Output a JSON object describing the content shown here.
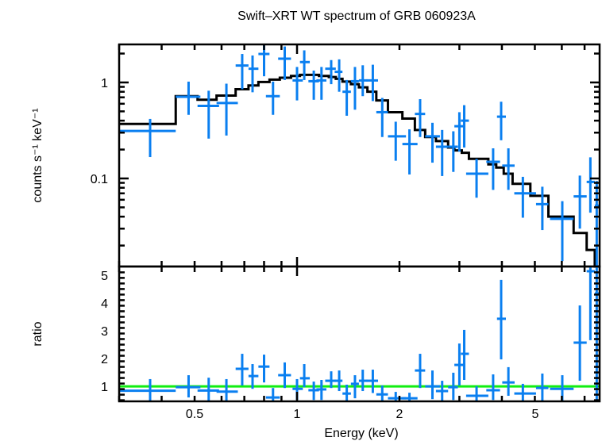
{
  "chart_data": [
    {
      "panel": "spectrum",
      "type": "scatter",
      "title": "Swift–XRT WT spectrum of GRB 060923A",
      "xlabel": "Energy (keV)",
      "ylabel": "counts s⁻¹ keV⁻¹",
      "xscale": "log",
      "yscale": "log",
      "xlim": [
        0.3,
        7.75
      ],
      "ylim": [
        0.0121,
        2.49
      ],
      "xticks": [
        {
          "value": 0.5,
          "label": "0.5"
        },
        {
          "value": 1,
          "label": "1"
        },
        {
          "value": 2,
          "label": "2"
        },
        {
          "value": 5,
          "label": "5"
        }
      ],
      "yticks": [
        {
          "value": 1,
          "label": "1"
        },
        {
          "value": 0.1,
          "label": "0.1"
        }
      ],
      "grid": false,
      "data_color": "#0a7ff0",
      "model_color": "#000000",
      "data": [
        {
          "e": 0.37,
          "elo": 0.3,
          "ehi": 0.44,
          "y": 0.312,
          "ylo": 0.167,
          "yhi": 0.417
        },
        {
          "e": 0.48,
          "elo": 0.44,
          "ehi": 0.52,
          "y": 0.71,
          "ylo": 0.46,
          "yhi": 1.02
        },
        {
          "e": 0.55,
          "elo": 0.51,
          "ehi": 0.59,
          "y": 0.57,
          "ylo": 0.26,
          "yhi": 0.82
        },
        {
          "e": 0.62,
          "elo": 0.58,
          "ehi": 0.67,
          "y": 0.61,
          "ylo": 0.28,
          "yhi": 0.97
        },
        {
          "e": 0.69,
          "elo": 0.66,
          "ehi": 0.72,
          "y": 1.5,
          "ylo": 0.85,
          "yhi": 1.98
        },
        {
          "e": 0.74,
          "elo": 0.72,
          "ehi": 0.77,
          "y": 1.39,
          "ylo": 0.79,
          "yhi": 1.91
        },
        {
          "e": 0.8,
          "elo": 0.77,
          "ehi": 0.83,
          "y": 1.98,
          "ylo": 1.16,
          "yhi": 2.49
        },
        {
          "e": 0.85,
          "elo": 0.81,
          "ehi": 0.89,
          "y": 0.72,
          "ylo": 0.46,
          "yhi": 1.02
        },
        {
          "e": 0.92,
          "elo": 0.88,
          "ehi": 0.96,
          "y": 1.77,
          "ylo": 1.06,
          "yhi": 2.37
        },
        {
          "e": 1.0,
          "elo": 0.97,
          "ehi": 1.04,
          "y": 1.05,
          "ylo": 0.65,
          "yhi": 1.45
        },
        {
          "e": 1.05,
          "elo": 1.02,
          "ehi": 1.09,
          "y": 1.63,
          "ylo": 1.06,
          "yhi": 2.16
        },
        {
          "e": 1.12,
          "elo": 1.08,
          "ehi": 1.16,
          "y": 1.03,
          "ylo": 0.66,
          "yhi": 1.33
        },
        {
          "e": 1.18,
          "elo": 1.14,
          "ehi": 1.22,
          "y": 1.05,
          "ylo": 0.66,
          "yhi": 1.45
        },
        {
          "e": 1.26,
          "elo": 1.21,
          "ehi": 1.3,
          "y": 1.39,
          "ylo": 0.96,
          "yhi": 1.71
        },
        {
          "e": 1.33,
          "elo": 1.29,
          "ehi": 1.36,
          "y": 1.29,
          "ylo": 0.8,
          "yhi": 1.74
        },
        {
          "e": 1.4,
          "elo": 1.36,
          "ehi": 1.44,
          "y": 0.8,
          "ylo": 0.45,
          "yhi": 1.06
        },
        {
          "e": 1.48,
          "elo": 1.44,
          "ehi": 1.52,
          "y": 1.03,
          "ylo": 0.52,
          "yhi": 1.45
        },
        {
          "e": 1.56,
          "elo": 1.52,
          "ehi": 1.61,
          "y": 1.05,
          "ylo": 0.72,
          "yhi": 1.51
        },
        {
          "e": 1.67,
          "elo": 1.6,
          "ehi": 1.73,
          "y": 1.05,
          "ylo": 0.64,
          "yhi": 1.53
        },
        {
          "e": 1.78,
          "elo": 1.71,
          "ehi": 1.85,
          "y": 0.49,
          "ylo": 0.27,
          "yhi": 0.69
        },
        {
          "e": 1.95,
          "elo": 1.85,
          "ehi": 2.09,
          "y": 0.275,
          "ylo": 0.153,
          "yhi": 0.39
        },
        {
          "e": 2.14,
          "elo": 2.04,
          "ehi": 2.26,
          "y": 0.228,
          "ylo": 0.11,
          "yhi": 0.325
        },
        {
          "e": 2.3,
          "elo": 2.22,
          "ehi": 2.38,
          "y": 0.47,
          "ylo": 0.27,
          "yhi": 0.67
        },
        {
          "e": 2.5,
          "elo": 2.38,
          "ehi": 2.63,
          "y": 0.275,
          "ylo": 0.146,
          "yhi": 0.38
        },
        {
          "e": 2.67,
          "elo": 2.56,
          "ehi": 2.78,
          "y": 0.214,
          "ylo": 0.106,
          "yhi": 0.32
        },
        {
          "e": 2.88,
          "elo": 2.78,
          "ehi": 2.97,
          "y": 0.214,
          "ylo": 0.117,
          "yhi": 0.31
        },
        {
          "e": 3.0,
          "elo": 2.9,
          "ehi": 3.11,
          "y": 0.35,
          "ylo": 0.19,
          "yhi": 0.49
        },
        {
          "e": 3.1,
          "elo": 3.03,
          "ehi": 3.2,
          "y": 0.4,
          "ylo": 0.21,
          "yhi": 0.58
        },
        {
          "e": 3.37,
          "elo": 3.14,
          "ehi": 3.65,
          "y": 0.112,
          "ylo": 0.063,
          "yhi": 0.16
        },
        {
          "e": 3.77,
          "elo": 3.6,
          "ehi": 3.95,
          "y": 0.149,
          "ylo": 0.076,
          "yhi": 0.206
        },
        {
          "e": 3.98,
          "elo": 3.87,
          "ehi": 4.11,
          "y": 0.44,
          "ylo": 0.25,
          "yhi": 0.63
        },
        {
          "e": 4.18,
          "elo": 4.01,
          "ehi": 4.36,
          "y": 0.136,
          "ylo": 0.076,
          "yhi": 0.206
        },
        {
          "e": 4.61,
          "elo": 4.35,
          "ehi": 5.04,
          "y": 0.07,
          "ylo": 0.039,
          "yhi": 0.104
        },
        {
          "e": 5.26,
          "elo": 5.04,
          "ehi": 5.48,
          "y": 0.054,
          "ylo": 0.029,
          "yhi": 0.082
        },
        {
          "e": 6.02,
          "elo": 5.54,
          "ehi": 6.5,
          "y": 0.038,
          "ylo": 0.0138,
          "yhi": 0.058
        },
        {
          "e": 6.78,
          "elo": 6.5,
          "ehi": 7.1,
          "y": 0.065,
          "ylo": 0.03,
          "yhi": 0.107
        },
        {
          "e": 7.28,
          "elo": 7.1,
          "ehi": 7.5,
          "y": 0.092,
          "ylo": 0.044,
          "yhi": 0.166
        },
        {
          "e": 7.6,
          "elo": 7.5,
          "ehi": 7.75,
          "y": 0.052,
          "ylo": 0.0121,
          "yhi": 0.094
        }
      ],
      "model_steps": [
        {
          "elo": 0.3,
          "ehi": 0.44,
          "y": 0.37
        },
        {
          "elo": 0.44,
          "ehi": 0.51,
          "y": 0.72
        },
        {
          "elo": 0.51,
          "ehi": 0.58,
          "y": 0.66
        },
        {
          "elo": 0.58,
          "ehi": 0.66,
          "y": 0.73
        },
        {
          "elo": 0.66,
          "ehi": 0.72,
          "y": 0.85
        },
        {
          "elo": 0.72,
          "ehi": 0.77,
          "y": 0.93
        },
        {
          "elo": 0.77,
          "ehi": 0.83,
          "y": 1.01
        },
        {
          "elo": 0.83,
          "ehi": 0.89,
          "y": 1.07
        },
        {
          "elo": 0.89,
          "ehi": 0.96,
          "y": 1.12
        },
        {
          "elo": 0.96,
          "ehi": 1.02,
          "y": 1.17
        },
        {
          "elo": 1.02,
          "ehi": 1.1,
          "y": 1.2
        },
        {
          "elo": 1.1,
          "ehi": 1.16,
          "y": 1.2
        },
        {
          "elo": 1.16,
          "ehi": 1.24,
          "y": 1.17
        },
        {
          "elo": 1.24,
          "ehi": 1.3,
          "y": 1.14
        },
        {
          "elo": 1.3,
          "ehi": 1.36,
          "y": 1.09
        },
        {
          "elo": 1.36,
          "ehi": 1.44,
          "y": 1.02
        },
        {
          "elo": 1.44,
          "ehi": 1.52,
          "y": 0.96
        },
        {
          "elo": 1.52,
          "ehi": 1.61,
          "y": 0.89
        },
        {
          "elo": 1.61,
          "ehi": 1.71,
          "y": 0.8
        },
        {
          "elo": 1.71,
          "ehi": 1.85,
          "y": 0.65
        },
        {
          "elo": 1.85,
          "ehi": 2.04,
          "y": 0.49
        },
        {
          "elo": 2.04,
          "ehi": 2.22,
          "y": 0.42
        },
        {
          "elo": 2.22,
          "ehi": 2.38,
          "y": 0.32
        },
        {
          "elo": 2.38,
          "ehi": 2.56,
          "y": 0.27
        },
        {
          "elo": 2.56,
          "ehi": 2.78,
          "y": 0.245
        },
        {
          "elo": 2.78,
          "ehi": 2.9,
          "y": 0.21
        },
        {
          "elo": 2.9,
          "ehi": 3.05,
          "y": 0.196
        },
        {
          "elo": 3.05,
          "ehi": 3.2,
          "y": 0.185
        },
        {
          "elo": 3.2,
          "ehi": 3.65,
          "y": 0.16
        },
        {
          "elo": 3.65,
          "ehi": 3.85,
          "y": 0.14
        },
        {
          "elo": 3.85,
          "ehi": 4.05,
          "y": 0.13
        },
        {
          "elo": 4.05,
          "ehi": 4.3,
          "y": 0.112
        },
        {
          "elo": 4.3,
          "ehi": 4.85,
          "y": 0.088
        },
        {
          "elo": 4.85,
          "ehi": 5.48,
          "y": 0.066
        },
        {
          "elo": 5.48,
          "ehi": 6.5,
          "y": 0.04
        },
        {
          "elo": 6.5,
          "ehi": 7.1,
          "y": 0.027
        },
        {
          "elo": 7.1,
          "ehi": 7.5,
          "y": 0.018
        },
        {
          "elo": 7.5,
          "ehi": 7.75,
          "y": 0.012
        }
      ]
    },
    {
      "panel": "ratio",
      "type": "scatter",
      "xlabel": "Energy (keV)",
      "ylabel": "ratio",
      "xscale": "log",
      "yscale": "linear",
      "xlim": [
        0.3,
        7.75
      ],
      "ylim": [
        0.46,
        5.31
      ],
      "xticks": [
        {
          "value": 0.5,
          "label": "0.5"
        },
        {
          "value": 1,
          "label": "1"
        },
        {
          "value": 2,
          "label": "2"
        },
        {
          "value": 5,
          "label": "5"
        }
      ],
      "yticks": [
        {
          "value": 1,
          "label": "1"
        },
        {
          "value": 2,
          "label": "2"
        },
        {
          "value": 3,
          "label": "3"
        },
        {
          "value": 4,
          "label": "4"
        },
        {
          "value": 5,
          "label": "5"
        }
      ],
      "grid": false,
      "reference_line": 1,
      "reference_color": "#11ee11",
      "data_color": "#0a7ff0",
      "data": [
        {
          "e": 0.37,
          "elo": 0.3,
          "ehi": 0.44,
          "y": 0.84,
          "ylo": 0.46,
          "yhi": 1.26
        },
        {
          "e": 0.48,
          "elo": 0.44,
          "ehi": 0.52,
          "y": 0.97,
          "ylo": 0.6,
          "yhi": 1.4
        },
        {
          "e": 0.55,
          "elo": 0.51,
          "ehi": 0.59,
          "y": 0.85,
          "ylo": 0.46,
          "yhi": 1.31
        },
        {
          "e": 0.62,
          "elo": 0.58,
          "ehi": 0.67,
          "y": 0.81,
          "ylo": 0.46,
          "yhi": 1.26
        },
        {
          "e": 0.69,
          "elo": 0.66,
          "ehi": 0.72,
          "y": 1.63,
          "ylo": 1.03,
          "yhi": 2.17
        },
        {
          "e": 0.74,
          "elo": 0.72,
          "ehi": 0.77,
          "y": 1.37,
          "ylo": 0.91,
          "yhi": 1.8
        },
        {
          "e": 0.8,
          "elo": 0.77,
          "ehi": 0.83,
          "y": 1.71,
          "ylo": 1.14,
          "yhi": 2.14
        },
        {
          "e": 0.85,
          "elo": 0.81,
          "ehi": 0.89,
          "y": 0.6,
          "ylo": 0.46,
          "yhi": 0.94
        },
        {
          "e": 0.92,
          "elo": 0.88,
          "ehi": 0.96,
          "y": 1.4,
          "ylo": 0.94,
          "yhi": 1.86
        },
        {
          "e": 1.0,
          "elo": 0.97,
          "ehi": 1.04,
          "y": 0.91,
          "ylo": 0.51,
          "yhi": 1.26
        },
        {
          "e": 1.05,
          "elo": 1.02,
          "ehi": 1.09,
          "y": 1.29,
          "ylo": 0.97,
          "yhi": 1.8
        },
        {
          "e": 1.12,
          "elo": 1.08,
          "ehi": 1.16,
          "y": 0.86,
          "ylo": 0.51,
          "yhi": 1.17
        },
        {
          "e": 1.18,
          "elo": 1.14,
          "ehi": 1.22,
          "y": 0.89,
          "ylo": 0.51,
          "yhi": 1.23
        },
        {
          "e": 1.26,
          "elo": 1.21,
          "ehi": 1.3,
          "y": 1.2,
          "ylo": 0.94,
          "yhi": 1.54
        },
        {
          "e": 1.33,
          "elo": 1.29,
          "ehi": 1.36,
          "y": 1.2,
          "ylo": 0.83,
          "yhi": 1.57
        },
        {
          "e": 1.4,
          "elo": 1.36,
          "ehi": 1.44,
          "y": 0.74,
          "ylo": 0.46,
          "yhi": 1.06
        },
        {
          "e": 1.48,
          "elo": 1.44,
          "ehi": 1.52,
          "y": 1.09,
          "ylo": 0.57,
          "yhi": 1.4
        },
        {
          "e": 1.56,
          "elo": 1.52,
          "ehi": 1.61,
          "y": 1.2,
          "ylo": 0.83,
          "yhi": 1.6
        },
        {
          "e": 1.67,
          "elo": 1.6,
          "ehi": 1.73,
          "y": 1.2,
          "ylo": 0.76,
          "yhi": 1.6
        },
        {
          "e": 1.78,
          "elo": 1.71,
          "ehi": 1.85,
          "y": 0.71,
          "ylo": 0.46,
          "yhi": 1.03
        },
        {
          "e": 1.95,
          "elo": 1.85,
          "ehi": 2.09,
          "y": 0.57,
          "ylo": 0.46,
          "yhi": 0.8
        },
        {
          "e": 2.14,
          "elo": 2.04,
          "ehi": 2.26,
          "y": 0.57,
          "ylo": 0.46,
          "yhi": 0.77
        },
        {
          "e": 2.3,
          "elo": 2.22,
          "ehi": 2.38,
          "y": 1.57,
          "ylo": 0.94,
          "yhi": 2.17
        },
        {
          "e": 2.5,
          "elo": 2.38,
          "ehi": 2.63,
          "y": 1.0,
          "ylo": 0.54,
          "yhi": 1.57
        },
        {
          "e": 2.67,
          "elo": 2.56,
          "ehi": 2.78,
          "y": 0.83,
          "ylo": 0.46,
          "yhi": 1.2
        },
        {
          "e": 2.88,
          "elo": 2.78,
          "ehi": 2.97,
          "y": 0.97,
          "ylo": 0.51,
          "yhi": 1.49
        },
        {
          "e": 3.0,
          "elo": 2.9,
          "ehi": 3.11,
          "y": 1.77,
          "ylo": 1.03,
          "yhi": 2.54
        },
        {
          "e": 3.1,
          "elo": 3.03,
          "ehi": 3.2,
          "y": 2.17,
          "ylo": 1.23,
          "yhi": 3.03
        },
        {
          "e": 3.37,
          "elo": 3.14,
          "ehi": 3.65,
          "y": 0.66,
          "ylo": 0.46,
          "yhi": 1.0
        },
        {
          "e": 3.77,
          "elo": 3.6,
          "ehi": 3.95,
          "y": 0.86,
          "ylo": 0.51,
          "yhi": 1.43
        },
        {
          "e": 3.98,
          "elo": 3.87,
          "ehi": 4.11,
          "y": 3.43,
          "ylo": 1.97,
          "yhi": 4.83
        },
        {
          "e": 4.18,
          "elo": 4.01,
          "ehi": 4.36,
          "y": 1.14,
          "ylo": 0.66,
          "yhi": 1.69
        },
        {
          "e": 4.61,
          "elo": 4.35,
          "ehi": 5.04,
          "y": 0.74,
          "ylo": 0.46,
          "yhi": 1.09
        },
        {
          "e": 5.26,
          "elo": 5.04,
          "ehi": 5.48,
          "y": 0.94,
          "ylo": 0.46,
          "yhi": 1.46
        },
        {
          "e": 6.02,
          "elo": 5.54,
          "ehi": 6.5,
          "y": 0.91,
          "ylo": 0.46,
          "yhi": 1.4
        },
        {
          "e": 6.78,
          "elo": 6.5,
          "ehi": 7.1,
          "y": 2.57,
          "ylo": 1.2,
          "yhi": 3.91
        },
        {
          "e": 7.28,
          "elo": 7.1,
          "ehi": 7.5,
          "y": 5.14,
          "ylo": 2.66,
          "yhi": 5.31
        },
        {
          "e": 7.6,
          "elo": 7.5,
          "ehi": 7.75,
          "y": 4.34,
          "ylo": 0.46,
          "yhi": 5.31
        }
      ]
    }
  ]
}
